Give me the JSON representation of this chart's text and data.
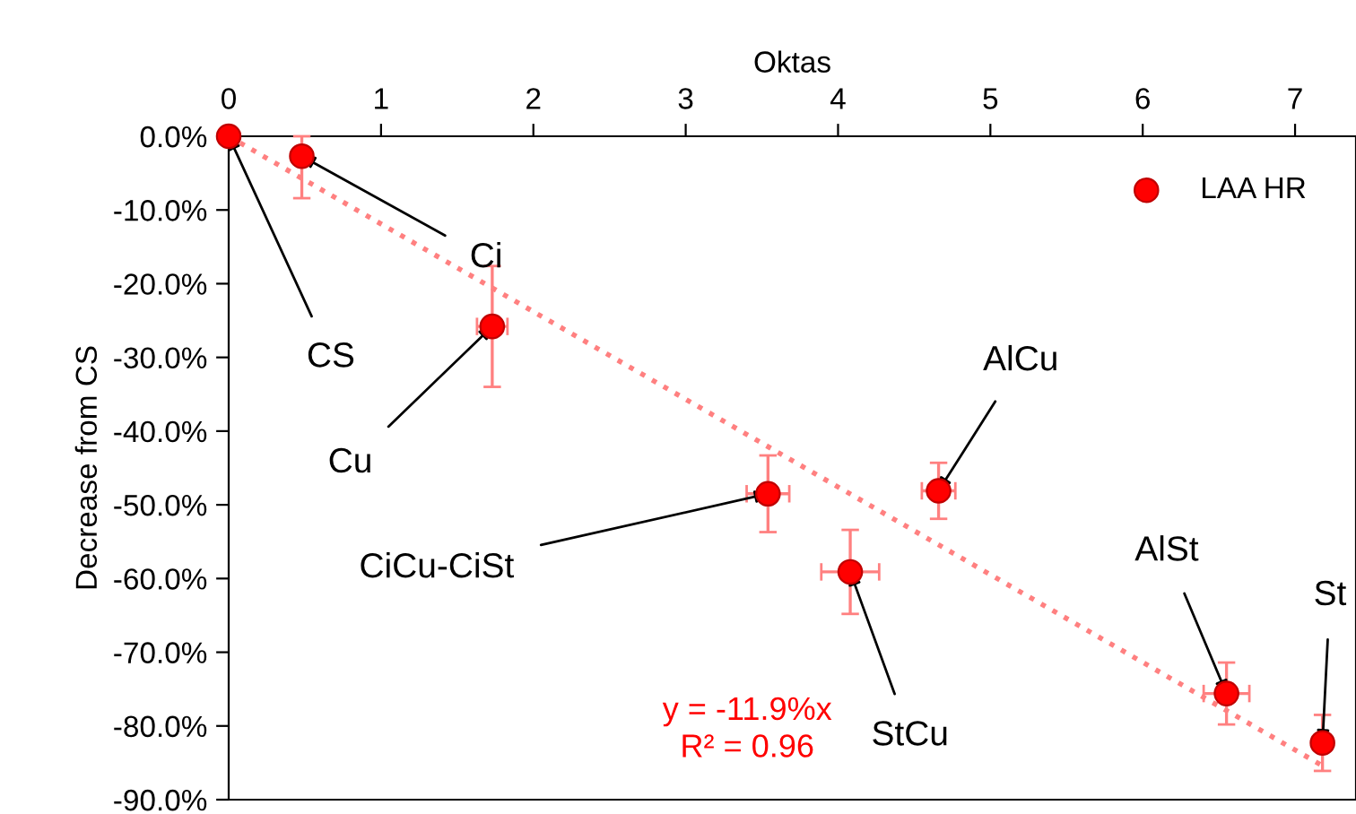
{
  "chart_data": {
    "type": "scatter",
    "xlabel": "Oktas",
    "ylabel": "Decrease from CS",
    "series": [
      {
        "name": "LAA HR",
        "type": "scatter",
        "marker": "circle",
        "color": "#ff0000",
        "x": [
          0,
          0.48,
          1.73,
          3.54,
          4.66,
          4.08,
          6.55,
          7.18
        ],
        "values": [
          0,
          -2.7,
          -25.8,
          -48.5,
          -48.1,
          -59.1,
          -75.6,
          -82.3
        ],
        "errors": [
          null,
          [
            -8.4,
            0
          ],
          8.2,
          5.2,
          3.8,
          5.7,
          4.2,
          3.8
        ],
        "xerrors": [
          null,
          null,
          0.1,
          0.14,
          0.11,
          0.19,
          0.15,
          null
        ]
      },
      {
        "type": "line",
        "color": "#ff8080",
        "line_style": "dotted",
        "x": [
          0,
          7.18
        ],
        "values": [
          0,
          -85.4
        ]
      }
    ],
    "annotations": [
      {
        "text": "CS",
        "x": 0,
        "y": 0
      },
      {
        "text": "Ci",
        "x": 0.48,
        "y": -2.7
      },
      {
        "text": "Cu",
        "x": 1.73,
        "y": -25.8
      },
      {
        "text": "CiCu-CiSt",
        "x": 3.54,
        "y": -48.5
      },
      {
        "text": "AlCu",
        "x": 4.66,
        "y": -48.1
      },
      {
        "text": "StCu",
        "x": 4.08,
        "y": -59.1
      },
      {
        "text": "AlSt",
        "x": 6.55,
        "y": -75.6
      },
      {
        "text": "St",
        "x": 7.18,
        "y": -82.3
      },
      "y = -11.9%x\nR² = 0.96"
    ],
    "xlim": [
      0,
      7.4
    ],
    "xticks": [
      0,
      1,
      2,
      3,
      4,
      5,
      6,
      7
    ],
    "ylim": [
      -90,
      0
    ],
    "yticks": [
      {
        "value": 0,
        "label": "0.0%"
      },
      {
        "value": -10,
        "label": "-10.0%"
      },
      {
        "value": -20,
        "label": "-20.0%"
      },
      {
        "value": -30,
        "label": "-30.0%"
      },
      {
        "value": -40,
        "label": "-40.0%"
      },
      {
        "value": -50,
        "label": "-50.0%"
      },
      {
        "value": -60,
        "label": "-60.0%"
      },
      {
        "value": -70,
        "label": "-70.0%"
      },
      {
        "value": -80,
        "label": "-80.0%"
      },
      {
        "value": -90,
        "label": "-90.0%"
      }
    ],
    "legend": "top right",
    "grid": false
  }
}
